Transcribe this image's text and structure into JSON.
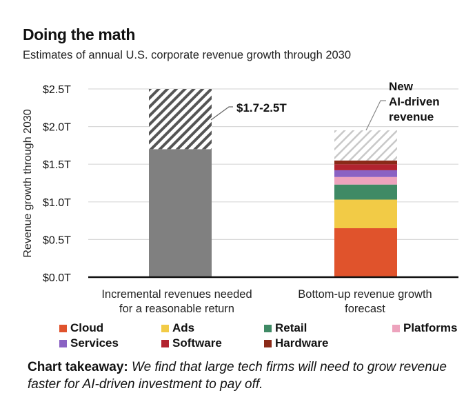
{
  "title": "Doing the math",
  "subtitle": "Estimates of annual U.S. corporate revenue growth through 2030",
  "takeaway": {
    "label": "Chart takeaway:",
    "text": "We find that large tech firms will need to grow revenue faster for AI-driven investment to pay off."
  },
  "colors": {
    "Cloud": "#e0532c",
    "Ads": "#f2cb46",
    "Retail": "#3f8a65",
    "Platforms": "#eda3bd",
    "Services": "#8a62c3",
    "Software": "#b2232f",
    "Hardware": "#8a2a18",
    "Incremental": "#808080",
    "hatch_dark": "#555555",
    "hatch_light": "#c8c8c8"
  },
  "chart_data": {
    "type": "bar",
    "stacked": true,
    "title": "Doing the math",
    "subtitle": "Estimates of annual U.S. corporate revenue growth through 2030",
    "xlabel": "",
    "ylabel": "Revenue growth through 2030",
    "ylim": [
      0,
      2.5
    ],
    "yticks": [
      0,
      0.5,
      1.0,
      1.5,
      2.0,
      2.5
    ],
    "ytick_labels": [
      "$0.0T",
      "$0.5T",
      "$1.0T",
      "$1.5T",
      "$2.0T",
      "$2.5T"
    ],
    "grid": true,
    "categories": [
      [
        "Incremental revenues needed",
        "for a reasonable return"
      ],
      [
        "Bottom-up revenue growth",
        "forecast"
      ]
    ],
    "bars": [
      {
        "name": "Incremental revenues needed for a reasonable return",
        "segments": [
          {
            "name": "Incremental",
            "value": 1.7,
            "style": "solid"
          },
          {
            "name": "Range",
            "value": 0.8,
            "style": "hatch-dark"
          }
        ]
      },
      {
        "name": "Bottom-up revenue growth forecast",
        "segments": [
          {
            "name": "Cloud",
            "value": 0.65,
            "style": "solid"
          },
          {
            "name": "Ads",
            "value": 0.38,
            "style": "solid"
          },
          {
            "name": "Retail",
            "value": 0.2,
            "style": "solid"
          },
          {
            "name": "Platforms",
            "value": 0.1,
            "style": "solid"
          },
          {
            "name": "Services",
            "value": 0.09,
            "style": "solid"
          },
          {
            "name": "Software",
            "value": 0.08,
            "style": "solid"
          },
          {
            "name": "Hardware",
            "value": 0.05,
            "style": "solid"
          },
          {
            "name": "New AI-driven revenue",
            "value": 0.4,
            "style": "hatch-light"
          }
        ]
      }
    ],
    "annotations": [
      {
        "text": "$1.7-2.5T",
        "bar": 0
      },
      {
        "text": [
          "New",
          "AI-driven",
          "revenue"
        ],
        "bar": 1
      }
    ],
    "legend": {
      "position": "bottom",
      "entries": [
        "Cloud",
        "Ads",
        "Retail",
        "Platforms",
        "Services",
        "Software",
        "Hardware"
      ]
    }
  }
}
